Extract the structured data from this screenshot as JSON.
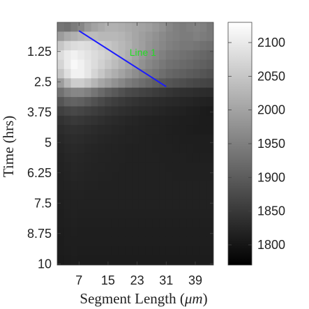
{
  "chart_data": {
    "type": "heatmap",
    "title": "",
    "xlabel": "Segment Length (",
    "xlabel_unit": "μm",
    "xlabel_close": ")",
    "ylabel": "Time (hrs)",
    "x_ticks": [
      7,
      15,
      23,
      31,
      39
    ],
    "x_tick_labels": [
      "7",
      "15",
      "23",
      "31",
      "39"
    ],
    "xlim": [
      1,
      44
    ],
    "y_ticks": [
      1.25,
      2.5,
      3.75,
      5,
      6.25,
      7.5,
      8.75,
      10
    ],
    "y_tick_labels": [
      "1.25",
      "2.5",
      "3.75",
      "5",
      "6.25",
      "7.5",
      "8.75",
      "10"
    ],
    "ylim": [
      0.05,
      10.05
    ],
    "colorbar": {
      "colormap": "gray",
      "range": [
        1770,
        2130
      ],
      "ticks": [
        2100,
        2050,
        2000,
        1950,
        1900,
        1850,
        1800
      ],
      "tick_labels": [
        "2100",
        "2050",
        "2000",
        "1950",
        "1900",
        "1850",
        "1800"
      ]
    },
    "grid": false,
    "annotations": [
      {
        "type": "line",
        "label": "Line 1",
        "color": "#1a1aff",
        "label_color": "#22dd22",
        "start": {
          "x": 7,
          "y": 0.4
        },
        "end": {
          "x": 31,
          "y": 2.7
        }
      }
    ],
    "intensity_grid": [
      [
        1935,
        1930,
        1945,
        1960,
        1985,
        2000,
        2010,
        2020,
        2020,
        2015,
        2010,
        2005,
        2000,
        1995,
        1985,
        1975,
        1960,
        1950,
        1945,
        1950,
        1955,
        1950,
        1940
      ],
      [
        1990,
        2010,
        2020,
        2030,
        2035,
        2035,
        2030,
        2030,
        2030,
        2025,
        2015,
        2005,
        1995,
        1985,
        1975,
        1965,
        1955,
        1950,
        1945,
        1945,
        1950,
        1945,
        1940
      ],
      [
        2050,
        2070,
        2080,
        2085,
        2080,
        2070,
        2060,
        2050,
        2040,
        2030,
        2020,
        2005,
        1995,
        1980,
        1970,
        1960,
        1950,
        1945,
        1940,
        1940,
        1935,
        1930,
        1925
      ],
      [
        2080,
        2100,
        2110,
        2100,
        2090,
        2080,
        2070,
        2060,
        2045,
        2030,
        2015,
        2000,
        1985,
        1970,
        1960,
        1950,
        1940,
        1935,
        1930,
        1925,
        1920,
        1915,
        1910
      ],
      [
        2070,
        2100,
        2120,
        2110,
        2095,
        2080,
        2065,
        2050,
        2035,
        2020,
        2005,
        1990,
        1975,
        1960,
        1950,
        1940,
        1930,
        1925,
        1920,
        1915,
        1910,
        1905,
        1900
      ],
      [
        2050,
        2085,
        2110,
        2110,
        2095,
        2070,
        2050,
        2030,
        2015,
        2000,
        1985,
        1970,
        1955,
        1945,
        1935,
        1925,
        1915,
        1910,
        1905,
        1900,
        1895,
        1890,
        1885
      ],
      [
        1990,
        2030,
        2060,
        2060,
        2045,
        2025,
        2005,
        1990,
        1975,
        1960,
        1945,
        1935,
        1925,
        1915,
        1905,
        1895,
        1890,
        1885,
        1880,
        1875,
        1870,
        1868,
        1865
      ],
      [
        1930,
        1950,
        1960,
        1960,
        1950,
        1935,
        1920,
        1905,
        1895,
        1885,
        1875,
        1870,
        1865,
        1860,
        1855,
        1850,
        1845,
        1840,
        1838,
        1836,
        1834,
        1832,
        1830
      ],
      [
        1890,
        1905,
        1910,
        1905,
        1895,
        1885,
        1875,
        1865,
        1858,
        1852,
        1846,
        1842,
        1838,
        1835,
        1832,
        1830,
        1828,
        1826,
        1824,
        1822,
        1820,
        1818,
        1816
      ],
      [
        1860,
        1868,
        1872,
        1868,
        1862,
        1856,
        1850,
        1845,
        1840,
        1836,
        1833,
        1830,
        1828,
        1826,
        1824,
        1822,
        1820,
        1818,
        1816,
        1814,
        1812,
        1810,
        1808
      ],
      [
        1840,
        1846,
        1850,
        1848,
        1844,
        1840,
        1836,
        1832,
        1829,
        1826,
        1824,
        1822,
        1820,
        1818,
        1817,
        1816,
        1815,
        1814,
        1813,
        1812,
        1811,
        1810,
        1809
      ],
      [
        1832,
        1836,
        1838,
        1836,
        1833,
        1830,
        1828,
        1826,
        1824,
        1822,
        1820,
        1819,
        1818,
        1817,
        1816,
        1815,
        1814,
        1813,
        1812,
        1811,
        1810,
        1810,
        1810
      ],
      [
        1826,
        1830,
        1832,
        1830,
        1828,
        1826,
        1824,
        1822,
        1821,
        1820,
        1819,
        1818,
        1817,
        1816,
        1815,
        1815,
        1814,
        1814,
        1813,
        1813,
        1812,
        1812,
        1812
      ],
      [
        1822,
        1826,
        1828,
        1826,
        1824,
        1822,
        1821,
        1820,
        1819,
        1818,
        1817,
        1817,
        1816,
        1816,
        1815,
        1815,
        1815,
        1814,
        1814,
        1814,
        1813,
        1813,
        1813
      ],
      [
        1820,
        1823,
        1825,
        1824,
        1822,
        1821,
        1820,
        1819,
        1818,
        1818,
        1817,
        1817,
        1816,
        1816,
        1816,
        1815,
        1815,
        1815,
        1815,
        1814,
        1814,
        1814,
        1814
      ],
      [
        1818,
        1821,
        1823,
        1822,
        1821,
        1820,
        1819,
        1818,
        1818,
        1817,
        1817,
        1817,
        1816,
        1816,
        1816,
        1816,
        1815,
        1815,
        1815,
        1815,
        1815,
        1815,
        1815
      ],
      [
        1817,
        1820,
        1822,
        1821,
        1820,
        1819,
        1818,
        1818,
        1817,
        1817,
        1817,
        1816,
        1816,
        1816,
        1816,
        1816,
        1816,
        1815,
        1815,
        1815,
        1815,
        1815,
        1815
      ],
      [
        1816,
        1818,
        1820,
        1819,
        1818,
        1818,
        1817,
        1817,
        1817,
        1816,
        1816,
        1816,
        1816,
        1816,
        1816,
        1816,
        1816,
        1816,
        1816,
        1816,
        1816,
        1816,
        1816
      ],
      [
        1815,
        1817,
        1818,
        1818,
        1817,
        1817,
        1816,
        1816,
        1816,
        1816,
        1816,
        1816,
        1816,
        1816,
        1816,
        1816,
        1816,
        1816,
        1816,
        1816,
        1816,
        1816,
        1816
      ],
      [
        1814,
        1816,
        1817,
        1816,
        1816,
        1816,
        1816,
        1816,
        1816,
        1816,
        1816,
        1816,
        1816,
        1816,
        1816,
        1816,
        1816,
        1816,
        1816,
        1816,
        1816,
        1816,
        1816
      ],
      [
        1813,
        1815,
        1816,
        1815,
        1815,
        1815,
        1815,
        1815,
        1815,
        1815,
        1815,
        1815,
        1815,
        1815,
        1815,
        1815,
        1815,
        1815,
        1815,
        1815,
        1815,
        1815,
        1815
      ],
      [
        1812,
        1814,
        1815,
        1814,
        1814,
        1814,
        1814,
        1814,
        1814,
        1814,
        1814,
        1814,
        1814,
        1814,
        1814,
        1814,
        1814,
        1814,
        1814,
        1814,
        1814,
        1814,
        1814
      ],
      [
        1811,
        1813,
        1814,
        1813,
        1813,
        1813,
        1813,
        1813,
        1813,
        1813,
        1813,
        1813,
        1813,
        1813,
        1813,
        1813,
        1813,
        1813,
        1813,
        1813,
        1813,
        1813,
        1813
      ],
      [
        1810,
        1812,
        1813,
        1812,
        1812,
        1812,
        1812,
        1812,
        1812,
        1812,
        1812,
        1812,
        1812,
        1812,
        1812,
        1812,
        1812,
        1812,
        1812,
        1812,
        1812,
        1812,
        1812
      ],
      [
        1809,
        1811,
        1812,
        1811,
        1811,
        1811,
        1811,
        1811,
        1811,
        1811,
        1811,
        1811,
        1811,
        1811,
        1811,
        1811,
        1811,
        1811,
        1811,
        1811,
        1811,
        1811,
        1811
      ],
      [
        1808,
        1810,
        1811,
        1810,
        1810,
        1810,
        1810,
        1810,
        1810,
        1810,
        1810,
        1810,
        1810,
        1810,
        1810,
        1810,
        1810,
        1810,
        1810,
        1810,
        1810,
        1810,
        1810
      ]
    ]
  }
}
